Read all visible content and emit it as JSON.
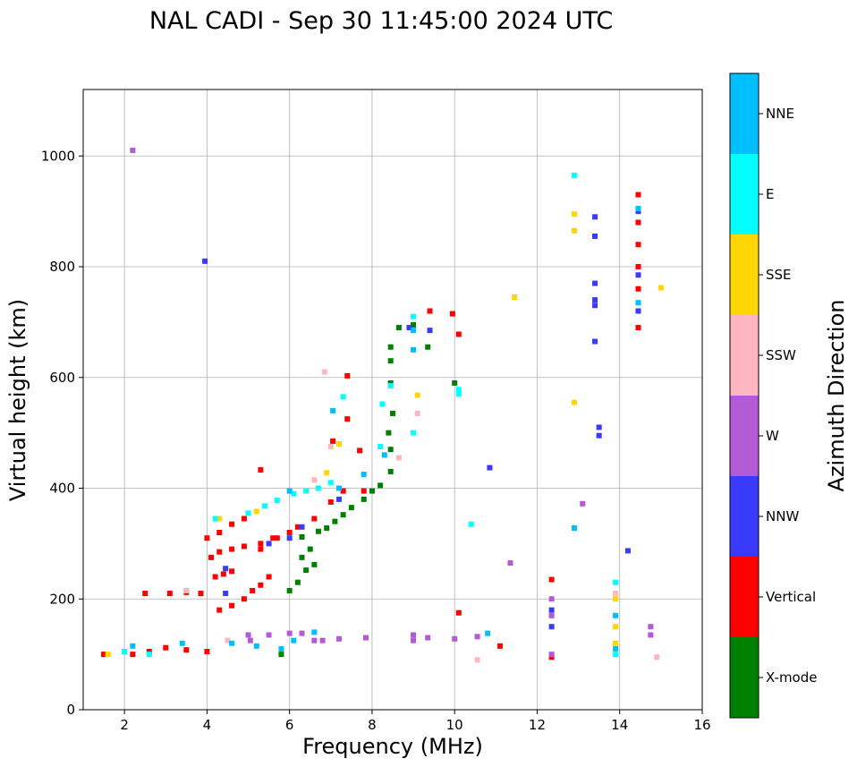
{
  "chart_data": {
    "type": "scatter",
    "title": "NAL CADI - Sep 30 11:45:00 2024 UTC",
    "xlabel": "Frequency (MHz)",
    "ylabel": "Virtual height (km)",
    "xlim": [
      1,
      16
    ],
    "ylim": [
      0,
      1120
    ],
    "xticks": [
      2,
      4,
      6,
      8,
      10,
      12,
      14,
      16
    ],
    "yticks": [
      0,
      200,
      400,
      600,
      800,
      1000
    ],
    "grid": true,
    "colorbar": {
      "label": "Azimuth Direction",
      "categories": [
        {
          "name": "X-mode",
          "color": "#008000"
        },
        {
          "name": "Vertical",
          "color": "#ff0000"
        },
        {
          "name": "NNW",
          "color": "#3a3aff"
        },
        {
          "name": "W",
          "color": "#b45ad6"
        },
        {
          "name": "SSW",
          "color": "#ffb6c1"
        },
        {
          "name": "SSE",
          "color": "#ffd700"
        },
        {
          "name": "E",
          "color": "#00ffff"
        },
        {
          "name": "NNE",
          "color": "#00bfff"
        }
      ]
    },
    "series": [
      {
        "name": "X-mode",
        "points": [
          [
            5.8,
            100
          ],
          [
            6.0,
            215
          ],
          [
            6.2,
            230
          ],
          [
            6.4,
            252
          ],
          [
            6.6,
            262
          ],
          [
            6.3,
            275
          ],
          [
            6.5,
            290
          ],
          [
            6.3,
            312
          ],
          [
            6.7,
            322
          ],
          [
            6.9,
            328
          ],
          [
            7.1,
            340
          ],
          [
            7.3,
            352
          ],
          [
            7.5,
            365
          ],
          [
            7.8,
            380
          ],
          [
            8.0,
            395
          ],
          [
            8.2,
            405
          ],
          [
            8.45,
            430
          ],
          [
            8.45,
            470
          ],
          [
            8.4,
            500
          ],
          [
            8.5,
            535
          ],
          [
            8.45,
            590
          ],
          [
            8.45,
            630
          ],
          [
            8.45,
            655
          ],
          [
            8.65,
            690
          ],
          [
            9.0,
            695
          ],
          [
            9.35,
            655
          ],
          [
            10.0,
            590
          ]
        ]
      },
      {
        "name": "Vertical",
        "points": [
          [
            1.5,
            100
          ],
          [
            2.2,
            100
          ],
          [
            2.6,
            105
          ],
          [
            3.0,
            112
          ],
          [
            3.5,
            108
          ],
          [
            4.0,
            105
          ],
          [
            2.5,
            210
          ],
          [
            3.1,
            210
          ],
          [
            3.5,
            212
          ],
          [
            3.85,
            210
          ],
          [
            4.2,
            240
          ],
          [
            4.4,
            245
          ],
          [
            4.6,
            250
          ],
          [
            4.3,
            180
          ],
          [
            4.6,
            188
          ],
          [
            4.9,
            200
          ],
          [
            5.1,
            215
          ],
          [
            5.3,
            225
          ],
          [
            5.5,
            240
          ],
          [
            4.1,
            275
          ],
          [
            4.3,
            285
          ],
          [
            4.6,
            290
          ],
          [
            4.9,
            295
          ],
          [
            5.3,
            300
          ],
          [
            5.6,
            310
          ],
          [
            6.0,
            320
          ],
          [
            4.0,
            310
          ],
          [
            4.3,
            320
          ],
          [
            4.6,
            335
          ],
          [
            4.9,
            345
          ],
          [
            5.3,
            290
          ],
          [
            5.7,
            310
          ],
          [
            6.2,
            330
          ],
          [
            6.6,
            345
          ],
          [
            7.0,
            375
          ],
          [
            7.3,
            395
          ],
          [
            7.8,
            395
          ],
          [
            9.4,
            720
          ],
          [
            9.95,
            715
          ],
          [
            10.1,
            678
          ],
          [
            10.1,
            175
          ],
          [
            11.1,
            115
          ],
          [
            5.3,
            433
          ],
          [
            7.05,
            485
          ],
          [
            7.4,
            525
          ],
          [
            7.7,
            468
          ],
          [
            7.4,
            603
          ],
          [
            12.35,
            235
          ],
          [
            12.35,
            95
          ],
          [
            14.45,
            930
          ],
          [
            14.45,
            690
          ],
          [
            14.45,
            760
          ],
          [
            14.45,
            800
          ],
          [
            14.45,
            840
          ],
          [
            14.45,
            880
          ]
        ]
      },
      {
        "name": "NNW",
        "points": [
          [
            3.95,
            810
          ],
          [
            13.4,
            890
          ],
          [
            13.4,
            855
          ],
          [
            13.4,
            770
          ],
          [
            13.4,
            740
          ],
          [
            13.4,
            730
          ],
          [
            13.4,
            665
          ],
          [
            13.5,
            510
          ],
          [
            13.5,
            495
          ],
          [
            14.2,
            287
          ],
          [
            14.45,
            785
          ],
          [
            10.85,
            437
          ],
          [
            4.45,
            255
          ],
          [
            4.45,
            210
          ],
          [
            5.5,
            300
          ],
          [
            6.0,
            310
          ],
          [
            6.3,
            330
          ],
          [
            7.2,
            380
          ],
          [
            9.4,
            685
          ],
          [
            8.9,
            690
          ],
          [
            12.35,
            180
          ],
          [
            12.35,
            150
          ],
          [
            14.45,
            720
          ],
          [
            14.45,
            900
          ]
        ]
      },
      {
        "name": "W",
        "points": [
          [
            2.2,
            1010
          ],
          [
            5.0,
            135
          ],
          [
            5.5,
            135
          ],
          [
            6.0,
            138
          ],
          [
            6.3,
            138
          ],
          [
            6.8,
            125
          ],
          [
            7.2,
            128
          ],
          [
            7.85,
            130
          ],
          [
            9.0,
            135
          ],
          [
            9.0,
            125
          ],
          [
            9.35,
            130
          ],
          [
            10.0,
            128
          ],
          [
            10.55,
            132
          ],
          [
            12.35,
            200
          ],
          [
            12.35,
            170
          ],
          [
            12.35,
            100
          ],
          [
            14.75,
            150
          ],
          [
            14.75,
            135
          ],
          [
            13.1,
            372
          ],
          [
            11.35,
            265
          ],
          [
            5.05,
            125
          ],
          [
            6.6,
            125
          ]
        ]
      },
      {
        "name": "SSW",
        "points": [
          [
            3.5,
            215
          ],
          [
            4.5,
            125
          ],
          [
            6.85,
            610
          ],
          [
            8.65,
            455
          ],
          [
            9.1,
            535
          ],
          [
            10.55,
            90
          ],
          [
            14.9,
            95
          ],
          [
            13.9,
            210
          ],
          [
            7.0,
            475
          ],
          [
            6.6,
            415
          ]
        ]
      },
      {
        "name": "SSE",
        "points": [
          [
            1.6,
            100
          ],
          [
            2.0,
            105
          ],
          [
            4.3,
            345
          ],
          [
            5.2,
            358
          ],
          [
            12.9,
            895
          ],
          [
            12.9,
            865
          ],
          [
            12.9,
            555
          ],
          [
            11.45,
            745
          ],
          [
            15.0,
            762
          ],
          [
            9.1,
            568
          ],
          [
            7.2,
            480
          ],
          [
            6.9,
            428
          ],
          [
            13.9,
            150
          ],
          [
            13.9,
            120
          ],
          [
            13.9,
            200
          ]
        ]
      },
      {
        "name": "E",
        "points": [
          [
            2.0,
            105
          ],
          [
            2.6,
            100
          ],
          [
            4.2,
            345
          ],
          [
            5.0,
            355
          ],
          [
            5.4,
            368
          ],
          [
            5.7,
            378
          ],
          [
            6.1,
            390
          ],
          [
            6.4,
            395
          ],
          [
            6.7,
            400
          ],
          [
            7.3,
            565
          ],
          [
            8.2,
            475
          ],
          [
            8.45,
            585
          ],
          [
            9.0,
            710
          ],
          [
            9.0,
            500
          ],
          [
            10.1,
            570
          ],
          [
            10.1,
            578
          ],
          [
            10.4,
            335
          ],
          [
            12.9,
            965
          ],
          [
            12.9,
            328
          ],
          [
            13.9,
            230
          ],
          [
            13.9,
            100
          ],
          [
            8.25,
            552
          ],
          [
            7.0,
            410
          ]
        ]
      },
      {
        "name": "NNE",
        "points": [
          [
            2.2,
            115
          ],
          [
            3.4,
            120
          ],
          [
            4.6,
            120
          ],
          [
            5.2,
            115
          ],
          [
            5.8,
            110
          ],
          [
            6.1,
            125
          ],
          [
            6.6,
            140
          ],
          [
            7.2,
            400
          ],
          [
            7.8,
            425
          ],
          [
            8.3,
            460
          ],
          [
            9.0,
            650
          ],
          [
            9.0,
            685
          ],
          [
            10.8,
            138
          ],
          [
            12.9,
            328
          ],
          [
            13.9,
            170
          ],
          [
            13.9,
            110
          ],
          [
            6.0,
            395
          ],
          [
            7.05,
            540
          ],
          [
            14.45,
            735
          ],
          [
            14.45,
            905
          ]
        ]
      }
    ]
  }
}
